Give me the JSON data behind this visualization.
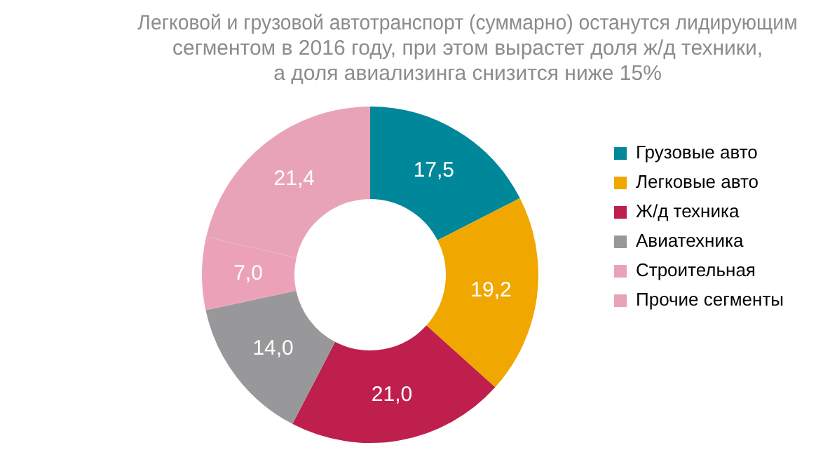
{
  "chart_data": {
    "type": "donut",
    "title": "Легковой и грузовой автотранспорт (суммарно) останутся лидирующим\nсегментом в 2016 году, при этом вырастет доля ж/д техники,\nа доля авиализинга снизится ниже 15%",
    "categories": [
      "Грузовые авто",
      "Легковые авто",
      "Ж/д техника",
      "Авиатехника",
      "Строительная",
      "Прочие сегменты"
    ],
    "values": [
      17.5,
      19.2,
      21.0,
      14.0,
      7.0,
      21.4
    ],
    "value_labels": [
      "17,5",
      "19,2",
      "21,0",
      "14,0",
      "7,0",
      "21,4"
    ],
    "colors": [
      "#00879a",
      "#f0a800",
      "#be1f4c",
      "#98989a",
      "#eba2b8",
      "#e8a4b6"
    ],
    "legend": "right"
  }
}
